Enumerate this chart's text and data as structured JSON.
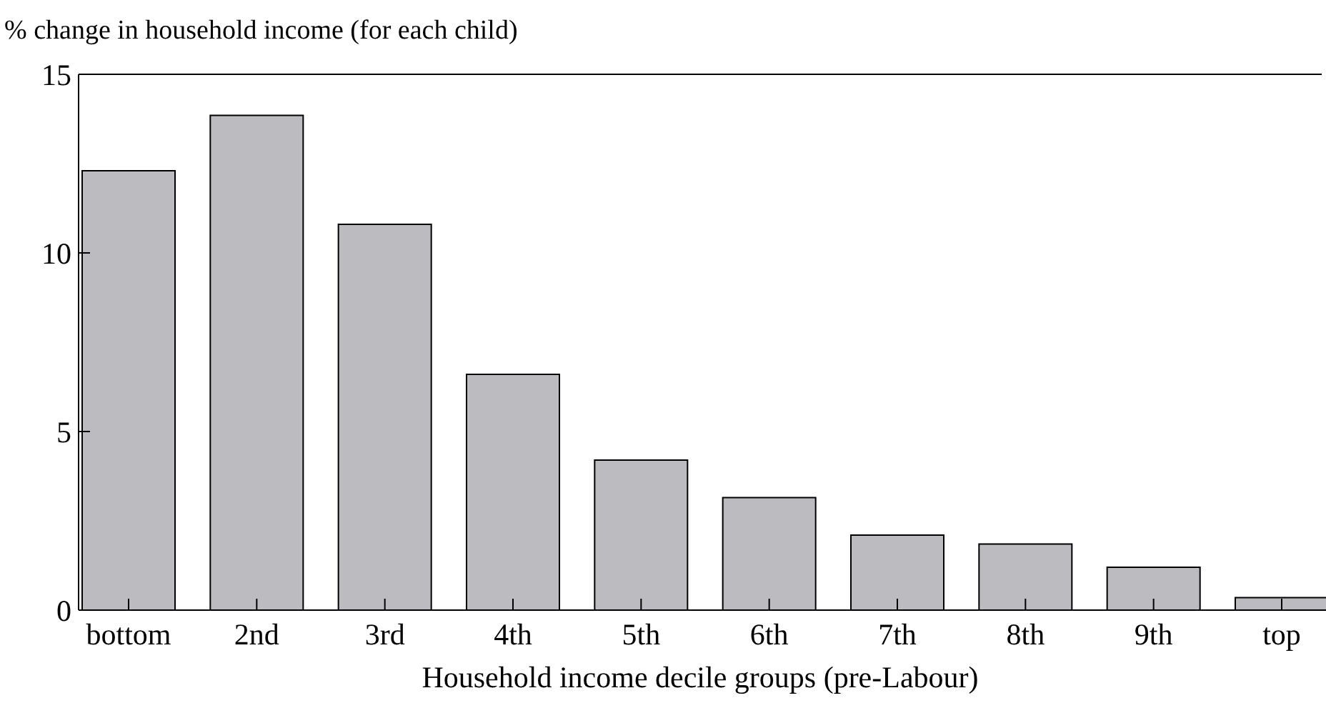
{
  "chart_data": {
    "type": "bar",
    "ylabel": "% change in household income (for each child)",
    "xlabel": "Household income decile groups (pre-Labour)",
    "categories": [
      "bottom",
      "2nd",
      "3rd",
      "4th",
      "5th",
      "6th",
      "7th",
      "8th",
      "9th",
      "top"
    ],
    "values": [
      12.3,
      13.85,
      10.8,
      6.6,
      4.2,
      3.15,
      2.1,
      1.85,
      1.2,
      0.35
    ],
    "color": "#bcbcc0",
    "ylim": [
      0,
      15
    ],
    "yticks": [
      0,
      5,
      10,
      15
    ],
    "grid": false
  }
}
